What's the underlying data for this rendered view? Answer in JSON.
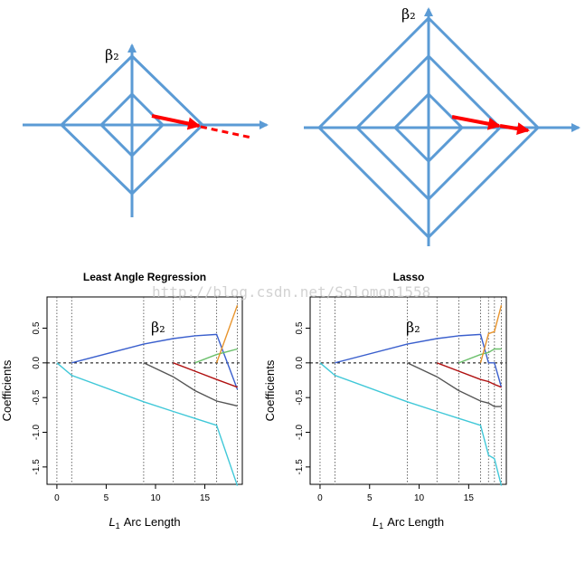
{
  "diagrams": {
    "left_label": "β₂",
    "right_label": "β₂",
    "colors": {
      "axis": "#5b9bd5",
      "arrow": "#ff0000"
    }
  },
  "watermark": "http://blog.csdn.net/Solomon1558",
  "chart_data": [
    {
      "type": "line",
      "title": "Least Angle Regression",
      "xlabel_prefix": "L",
      "xlabel_sub": "1",
      "xlabel_rest": "Arc Length",
      "ylabel": "Coefficients",
      "xlim": [
        -1,
        18.8
      ],
      "ylim": [
        -1.75,
        0.95
      ],
      "xticks": [
        0,
        5,
        10,
        15
      ],
      "yticks": [
        -1.5,
        -1.0,
        -0.5,
        0.0,
        0.5
      ],
      "ytick_labels": [
        "-1.5",
        "-1.0",
        "-0.5",
        "0.0",
        "0.5"
      ],
      "vlines": [
        0,
        1.5,
        8.8,
        11.8,
        14.0,
        16.2,
        18.3
      ],
      "annotation": "β₂",
      "series": [
        {
          "color": "#3a5fcd",
          "x": [
            1.5,
            8.8,
            11.8,
            14.0,
            16.2,
            18.3
          ],
          "y": [
            0.0,
            0.27,
            0.35,
            0.39,
            0.41,
            -0.38
          ]
        },
        {
          "color": "#40c8d8",
          "x": [
            0,
            1.5,
            8.8,
            11.8,
            14.0,
            16.2,
            18.3
          ],
          "y": [
            0.0,
            -0.18,
            -0.56,
            -0.7,
            -0.8,
            -0.9,
            -1.77
          ]
        },
        {
          "color": "#555555",
          "x": [
            8.8,
            11.8,
            14.0,
            16.2,
            18.3
          ],
          "y": [
            0.0,
            -0.2,
            -0.4,
            -0.55,
            -0.62
          ]
        },
        {
          "color": "#b01010",
          "x": [
            11.8,
            14.0,
            16.2,
            18.3
          ],
          "y": [
            0.0,
            -0.12,
            -0.24,
            -0.35
          ]
        },
        {
          "color": "#6cc06c",
          "x": [
            14.0,
            16.2,
            18.3
          ],
          "y": [
            0.0,
            0.12,
            0.2
          ]
        },
        {
          "color": "#e8942c",
          "x": [
            16.2,
            18.3
          ],
          "y": [
            0.0,
            0.83
          ]
        }
      ]
    },
    {
      "type": "line",
      "title": "Lasso",
      "xlabel_prefix": "L",
      "xlabel_sub": "1",
      "xlabel_rest": "Arc Length",
      "ylabel": "Coefficients",
      "xlim": [
        -1,
        18.8
      ],
      "ylim": [
        -1.75,
        0.95
      ],
      "xticks": [
        0,
        5,
        10,
        15
      ],
      "yticks": [
        -1.5,
        -1.0,
        -0.5,
        0.0,
        0.5
      ],
      "ytick_labels": [
        "-1.5",
        "-1.0",
        "-0.5",
        "0.0",
        "0.5"
      ],
      "vlines": [
        0,
        1.5,
        8.8,
        11.8,
        14.0,
        16.2,
        17.0,
        17.6,
        18.3
      ],
      "annotation": "β₂",
      "series": [
        {
          "color": "#3a5fcd",
          "x": [
            1.5,
            8.8,
            11.8,
            14.0,
            16.2,
            17.0,
            17.6,
            18.3
          ],
          "y": [
            0.0,
            0.27,
            0.35,
            0.39,
            0.41,
            0.0,
            0.0,
            -0.35
          ]
        },
        {
          "color": "#40c8d8",
          "x": [
            0,
            1.5,
            8.8,
            11.8,
            14.0,
            16.2,
            17.0,
            17.6,
            18.3
          ],
          "y": [
            0.0,
            -0.18,
            -0.56,
            -0.7,
            -0.8,
            -0.9,
            -1.33,
            -1.38,
            -1.77
          ]
        },
        {
          "color": "#555555",
          "x": [
            8.8,
            11.8,
            14.0,
            16.2,
            17.0,
            17.6,
            18.3
          ],
          "y": [
            0.0,
            -0.2,
            -0.4,
            -0.55,
            -0.58,
            -0.63,
            -0.63
          ]
        },
        {
          "color": "#b01010",
          "x": [
            11.8,
            14.0,
            16.2,
            17.0,
            17.6,
            18.3
          ],
          "y": [
            0.0,
            -0.12,
            -0.24,
            -0.27,
            -0.31,
            -0.35
          ]
        },
        {
          "color": "#6cc06c",
          "x": [
            14.0,
            16.2,
            17.0,
            17.6,
            18.3
          ],
          "y": [
            0.0,
            0.12,
            0.15,
            0.2,
            0.2
          ]
        },
        {
          "color": "#e8942c",
          "x": [
            16.2,
            17.0,
            17.6,
            18.3
          ],
          "y": [
            0.0,
            0.42,
            0.45,
            0.83
          ]
        }
      ]
    }
  ]
}
